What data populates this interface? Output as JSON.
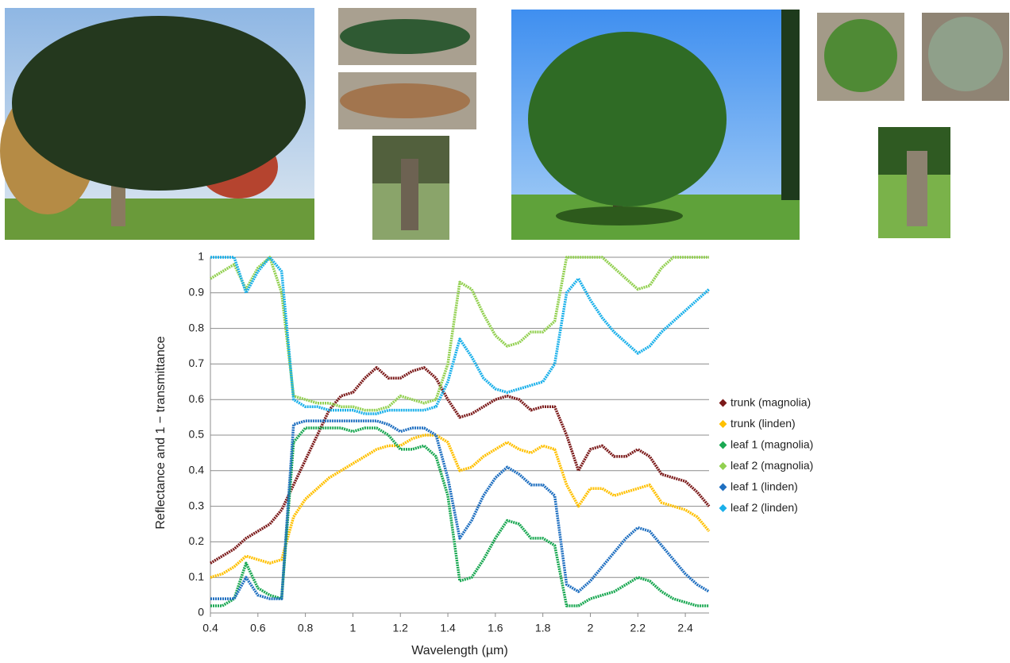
{
  "chart_data": {
    "type": "line",
    "y_label": "Reflectance and 1 − transmittance",
    "x_label": "Wavelength (µm)",
    "xlim": [
      0.4,
      2.5
    ],
    "ylim": [
      0,
      1
    ],
    "xticks": [
      0.4,
      0.6,
      0.8,
      1,
      1.2,
      1.4,
      1.6,
      1.8,
      2,
      2.2,
      2.4
    ],
    "yticks": [
      0,
      0.1,
      0.2,
      0.3,
      0.4,
      0.5,
      0.6,
      0.7,
      0.8,
      0.9,
      1
    ],
    "grid": true,
    "legend": "right",
    "x": [
      0.4,
      0.45,
      0.5,
      0.55,
      0.6,
      0.65,
      0.7,
      0.75,
      0.8,
      0.85,
      0.9,
      0.95,
      1.0,
      1.05,
      1.1,
      1.15,
      1.2,
      1.25,
      1.3,
      1.35,
      1.4,
      1.45,
      1.5,
      1.55,
      1.6,
      1.65,
      1.7,
      1.75,
      1.8,
      1.85,
      1.9,
      1.95,
      2.0,
      2.05,
      2.1,
      2.15,
      2.2,
      2.25,
      2.3,
      2.35,
      2.4,
      2.45,
      2.5
    ],
    "series": [
      {
        "name": "trunk (magnolia)",
        "color": "#7b1a1a",
        "values": [
          0.14,
          0.16,
          0.18,
          0.21,
          0.23,
          0.25,
          0.29,
          0.36,
          0.43,
          0.5,
          0.57,
          0.61,
          0.62,
          0.66,
          0.69,
          0.66,
          0.66,
          0.68,
          0.69,
          0.66,
          0.6,
          0.55,
          0.56,
          0.58,
          0.6,
          0.61,
          0.6,
          0.57,
          0.58,
          0.58,
          0.5,
          0.4,
          0.46,
          0.47,
          0.44,
          0.44,
          0.46,
          0.44,
          0.39,
          0.38,
          0.37,
          0.34,
          0.3
        ]
      },
      {
        "name": "trunk (linden)",
        "color": "#ffc000",
        "values": [
          0.1,
          0.11,
          0.13,
          0.16,
          0.15,
          0.14,
          0.15,
          0.27,
          0.32,
          0.35,
          0.38,
          0.4,
          0.42,
          0.44,
          0.46,
          0.47,
          0.47,
          0.49,
          0.5,
          0.5,
          0.48,
          0.4,
          0.41,
          0.44,
          0.46,
          0.48,
          0.46,
          0.45,
          0.47,
          0.46,
          0.36,
          0.3,
          0.35,
          0.35,
          0.33,
          0.34,
          0.35,
          0.36,
          0.31,
          0.3,
          0.29,
          0.27,
          0.23
        ]
      },
      {
        "name": "leaf 1 (magnolia)",
        "color": "#1aa852",
        "values": [
          0.02,
          0.02,
          0.04,
          0.14,
          0.07,
          0.05,
          0.04,
          0.48,
          0.52,
          0.52,
          0.52,
          0.52,
          0.51,
          0.52,
          0.52,
          0.5,
          0.46,
          0.46,
          0.47,
          0.44,
          0.33,
          0.09,
          0.1,
          0.15,
          0.21,
          0.26,
          0.25,
          0.21,
          0.21,
          0.19,
          0.02,
          0.02,
          0.04,
          0.05,
          0.06,
          0.08,
          0.1,
          0.09,
          0.06,
          0.04,
          0.03,
          0.02,
          0.02
        ]
      },
      {
        "name": "leaf 2 (magnolia)",
        "color": "#92d050",
        "values": [
          0.94,
          0.96,
          0.98,
          0.91,
          0.97,
          1.0,
          0.9,
          0.61,
          0.6,
          0.59,
          0.59,
          0.58,
          0.58,
          0.57,
          0.57,
          0.58,
          0.61,
          0.6,
          0.59,
          0.6,
          0.7,
          0.93,
          0.91,
          0.84,
          0.78,
          0.75,
          0.76,
          0.79,
          0.79,
          0.82,
          1.0,
          1.0,
          1.0,
          1.0,
          0.97,
          0.94,
          0.91,
          0.92,
          0.97,
          1.0,
          1.0,
          1.0,
          1.0
        ]
      },
      {
        "name": "leaf 1 (linden)",
        "color": "#1f6fc0",
        "values": [
          0.04,
          0.04,
          0.04,
          0.1,
          0.05,
          0.04,
          0.04,
          0.53,
          0.54,
          0.54,
          0.54,
          0.54,
          0.54,
          0.54,
          0.54,
          0.53,
          0.51,
          0.52,
          0.52,
          0.5,
          0.38,
          0.21,
          0.26,
          0.33,
          0.38,
          0.41,
          0.39,
          0.36,
          0.36,
          0.33,
          0.08,
          0.06,
          0.09,
          0.13,
          0.17,
          0.21,
          0.24,
          0.23,
          0.19,
          0.15,
          0.11,
          0.08,
          0.06
        ]
      },
      {
        "name": "leaf 2 (linden)",
        "color": "#1ab0ea",
        "values": [
          1.0,
          1.0,
          1.0,
          0.9,
          0.96,
          1.0,
          0.96,
          0.6,
          0.58,
          0.58,
          0.57,
          0.57,
          0.57,
          0.56,
          0.56,
          0.57,
          0.57,
          0.57,
          0.57,
          0.58,
          0.65,
          0.77,
          0.72,
          0.66,
          0.63,
          0.62,
          0.63,
          0.64,
          0.65,
          0.7,
          0.9,
          0.94,
          0.88,
          0.83,
          0.79,
          0.76,
          0.73,
          0.75,
          0.79,
          0.82,
          0.85,
          0.88,
          0.91
        ]
      }
    ]
  }
}
